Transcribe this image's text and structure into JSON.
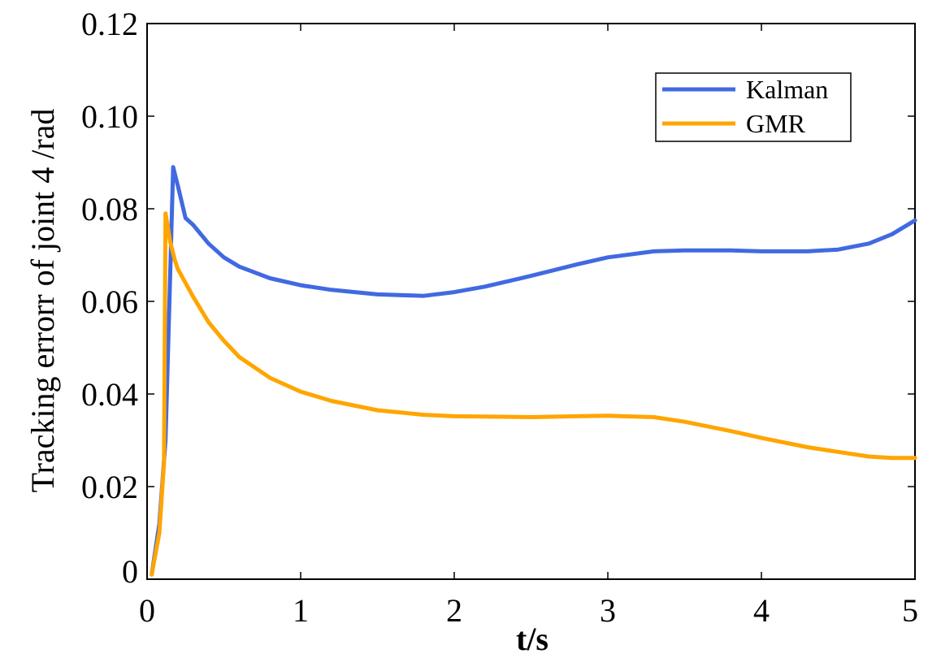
{
  "chart_data": {
    "type": "line",
    "title": "",
    "xlabel": "t/s",
    "ylabel": "Tracking errorr of joint 4 /rad",
    "xlim": [
      0,
      5
    ],
    "ylim": [
      0,
      0.12
    ],
    "grid": false,
    "legend_position": "top-right",
    "x_ticks": [
      "0",
      "1",
      "2",
      "3",
      "4",
      "5"
    ],
    "y_ticks": [
      "0",
      "0.02",
      "0.04",
      "0.06",
      "0.08",
      "0.10",
      "0.12"
    ],
    "series": [
      {
        "name": "Kalman",
        "color": "#4169E1",
        "x": [
          0.03,
          0.08,
          0.12,
          0.15,
          0.17,
          0.2,
          0.25,
          0.3,
          0.4,
          0.5,
          0.6,
          0.8,
          1.0,
          1.2,
          1.5,
          1.8,
          2.0,
          2.2,
          2.5,
          2.8,
          3.0,
          3.3,
          3.5,
          3.8,
          4.0,
          4.3,
          4.5,
          4.7,
          4.85,
          5.0
        ],
        "values": [
          0.001,
          0.012,
          0.03,
          0.065,
          0.089,
          0.085,
          0.078,
          0.0765,
          0.0725,
          0.0695,
          0.0675,
          0.065,
          0.0635,
          0.0625,
          0.0615,
          0.0612,
          0.062,
          0.0632,
          0.0655,
          0.068,
          0.0695,
          0.0708,
          0.071,
          0.071,
          0.0708,
          0.0708,
          0.0712,
          0.0725,
          0.0745,
          0.0775
        ]
      },
      {
        "name": "GMR",
        "color": "#FFA500",
        "x": [
          0.03,
          0.08,
          0.11,
          0.12,
          0.13,
          0.15,
          0.18,
          0.2,
          0.3,
          0.4,
          0.5,
          0.6,
          0.8,
          1.0,
          1.2,
          1.5,
          1.8,
          2.0,
          2.5,
          2.8,
          3.0,
          3.3,
          3.5,
          3.8,
          4.0,
          4.3,
          4.5,
          4.7,
          4.85,
          5.0
        ],
        "values": [
          0.001,
          0.01,
          0.025,
          0.079,
          0.077,
          0.073,
          0.069,
          0.067,
          0.061,
          0.0555,
          0.0515,
          0.048,
          0.0435,
          0.0405,
          0.0385,
          0.0365,
          0.0355,
          0.0352,
          0.035,
          0.0352,
          0.0353,
          0.035,
          0.034,
          0.032,
          0.0305,
          0.0285,
          0.0275,
          0.0265,
          0.0262,
          0.0262
        ]
      }
    ]
  }
}
